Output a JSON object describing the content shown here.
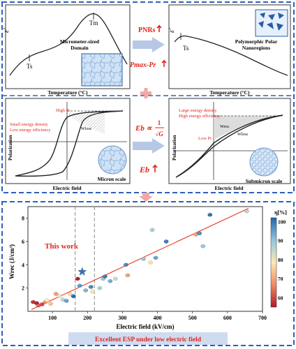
{
  "panels": {
    "top_left": {
      "ylabel": "ε′",
      "peak_label": "Tm",
      "shoulder_label": "Ts",
      "domain_label_1": "Micrometer-sized",
      "domain_label_2": "Domain",
      "xlabel": "Temperature (°C)"
    },
    "top_middle": {
      "label_1": "PNRs",
      "label_2": "Pmax-Pr"
    },
    "top_right": {
      "ylabel": "ε′",
      "shoulder_label": "Ts",
      "region_label_1": "Polymorphic Polar",
      "region_label_2": "Nanoregions",
      "xlabel": "Temperature (°C)"
    },
    "mid_left": {
      "high_pr": "High Pr",
      "note_1": "Small energy density",
      "note_2": "Low energy efficiency",
      "w_loss": "Wloss",
      "ylabel": "Polarization",
      "xlabel": "Electric field",
      "scale": "Micron scale"
    },
    "mid_middle": {
      "formula_lhs": "Eb ∝",
      "formula_num": "1",
      "formula_den": "√G",
      "eb": "Eb"
    },
    "mid_right": {
      "note_1": "Large energy density",
      "note_2": "High energy efficiency",
      "w_rec": "Wrec",
      "w_loss": "Wloss",
      "low_pr": "Low Pr",
      "ylabel": "Polarization",
      "xlabel": "Electric field",
      "scale": "Submicron scale"
    }
  },
  "chart_data": {
    "type": "scatter",
    "xlabel": "Electric field (kV/cm)",
    "ylabel": "Wrec (J/cm³)",
    "xlim": [
      30,
      700
    ],
    "ylim": [
      0,
      9
    ],
    "xticks": [
      "100",
      "200",
      "300",
      "400",
      "500",
      "600",
      "700"
    ],
    "yticks": [
      "2",
      "4",
      "6",
      "8"
    ],
    "colorbar_label": "η[%]",
    "colorbar_ticks": [
      "60",
      "70",
      "80",
      "90",
      "100"
    ],
    "this_work_label": "This work",
    "this_work": {
      "x": 185,
      "y": 3.4
    },
    "trend_line": [
      [
        40,
        0.15
      ],
      [
        660,
        8.85
      ]
    ],
    "dashed_lines_x": [
      165,
      220
    ],
    "points": [
      {
        "x": 45,
        "y": 0.8,
        "eta": 62
      },
      {
        "x": 55,
        "y": 0.7,
        "eta": 60
      },
      {
        "x": 70,
        "y": 0.6,
        "eta": 64
      },
      {
        "x": 60,
        "y": 0.5,
        "eta": 66
      },
      {
        "x": 80,
        "y": 0.8,
        "eta": 70
      },
      {
        "x": 85,
        "y": 0.95,
        "eta": 80
      },
      {
        "x": 95,
        "y": 0.65,
        "eta": 76
      },
      {
        "x": 110,
        "y": 1.5,
        "eta": 72
      },
      {
        "x": 120,
        "y": 1.3,
        "eta": 82
      },
      {
        "x": 130,
        "y": 1.0,
        "eta": 86
      },
      {
        "x": 140,
        "y": 0.9,
        "eta": 94
      },
      {
        "x": 150,
        "y": 1.5,
        "eta": 78
      },
      {
        "x": 160,
        "y": 1.3,
        "eta": 100
      },
      {
        "x": 172,
        "y": 2.8,
        "eta": 60
      },
      {
        "x": 178,
        "y": 2.2,
        "eta": 95
      },
      {
        "x": 195,
        "y": 1.8,
        "eta": 92
      },
      {
        "x": 210,
        "y": 2.1,
        "eta": 97
      },
      {
        "x": 215,
        "y": 1.7,
        "eta": 79
      },
      {
        "x": 235,
        "y": 2.0,
        "eta": 88
      },
      {
        "x": 245,
        "y": 2.8,
        "eta": 90
      },
      {
        "x": 250,
        "y": 3.0,
        "eta": 98
      },
      {
        "x": 265,
        "y": 2.6,
        "eta": 93
      },
      {
        "x": 280,
        "y": 2.8,
        "eta": 85
      },
      {
        "x": 310,
        "y": 4.0,
        "eta": 97
      },
      {
        "x": 315,
        "y": 3.1,
        "eta": 72
      },
      {
        "x": 360,
        "y": 4.5,
        "eta": 90
      },
      {
        "x": 380,
        "y": 4.2,
        "eta": 79
      },
      {
        "x": 385,
        "y": 7.0,
        "eta": 88
      },
      {
        "x": 395,
        "y": 4.6,
        "eta": 94
      },
      {
        "x": 425,
        "y": 6.0,
        "eta": 98
      },
      {
        "x": 510,
        "y": 6.6,
        "eta": 72
      },
      {
        "x": 520,
        "y": 6.7,
        "eta": 96
      },
      {
        "x": 530,
        "y": 5.6,
        "eta": 90
      },
      {
        "x": 550,
        "y": 8.3,
        "eta": 99
      },
      {
        "x": 655,
        "y": 8.6,
        "eta": 86
      }
    ]
  },
  "banner": "Excellent ESP under low electric field",
  "colors": {
    "frame": "#2f5fb8",
    "red": "#e2231a",
    "star": "#3f73b8",
    "trend": "#e8341c",
    "arrow": "#b7c8e6"
  }
}
